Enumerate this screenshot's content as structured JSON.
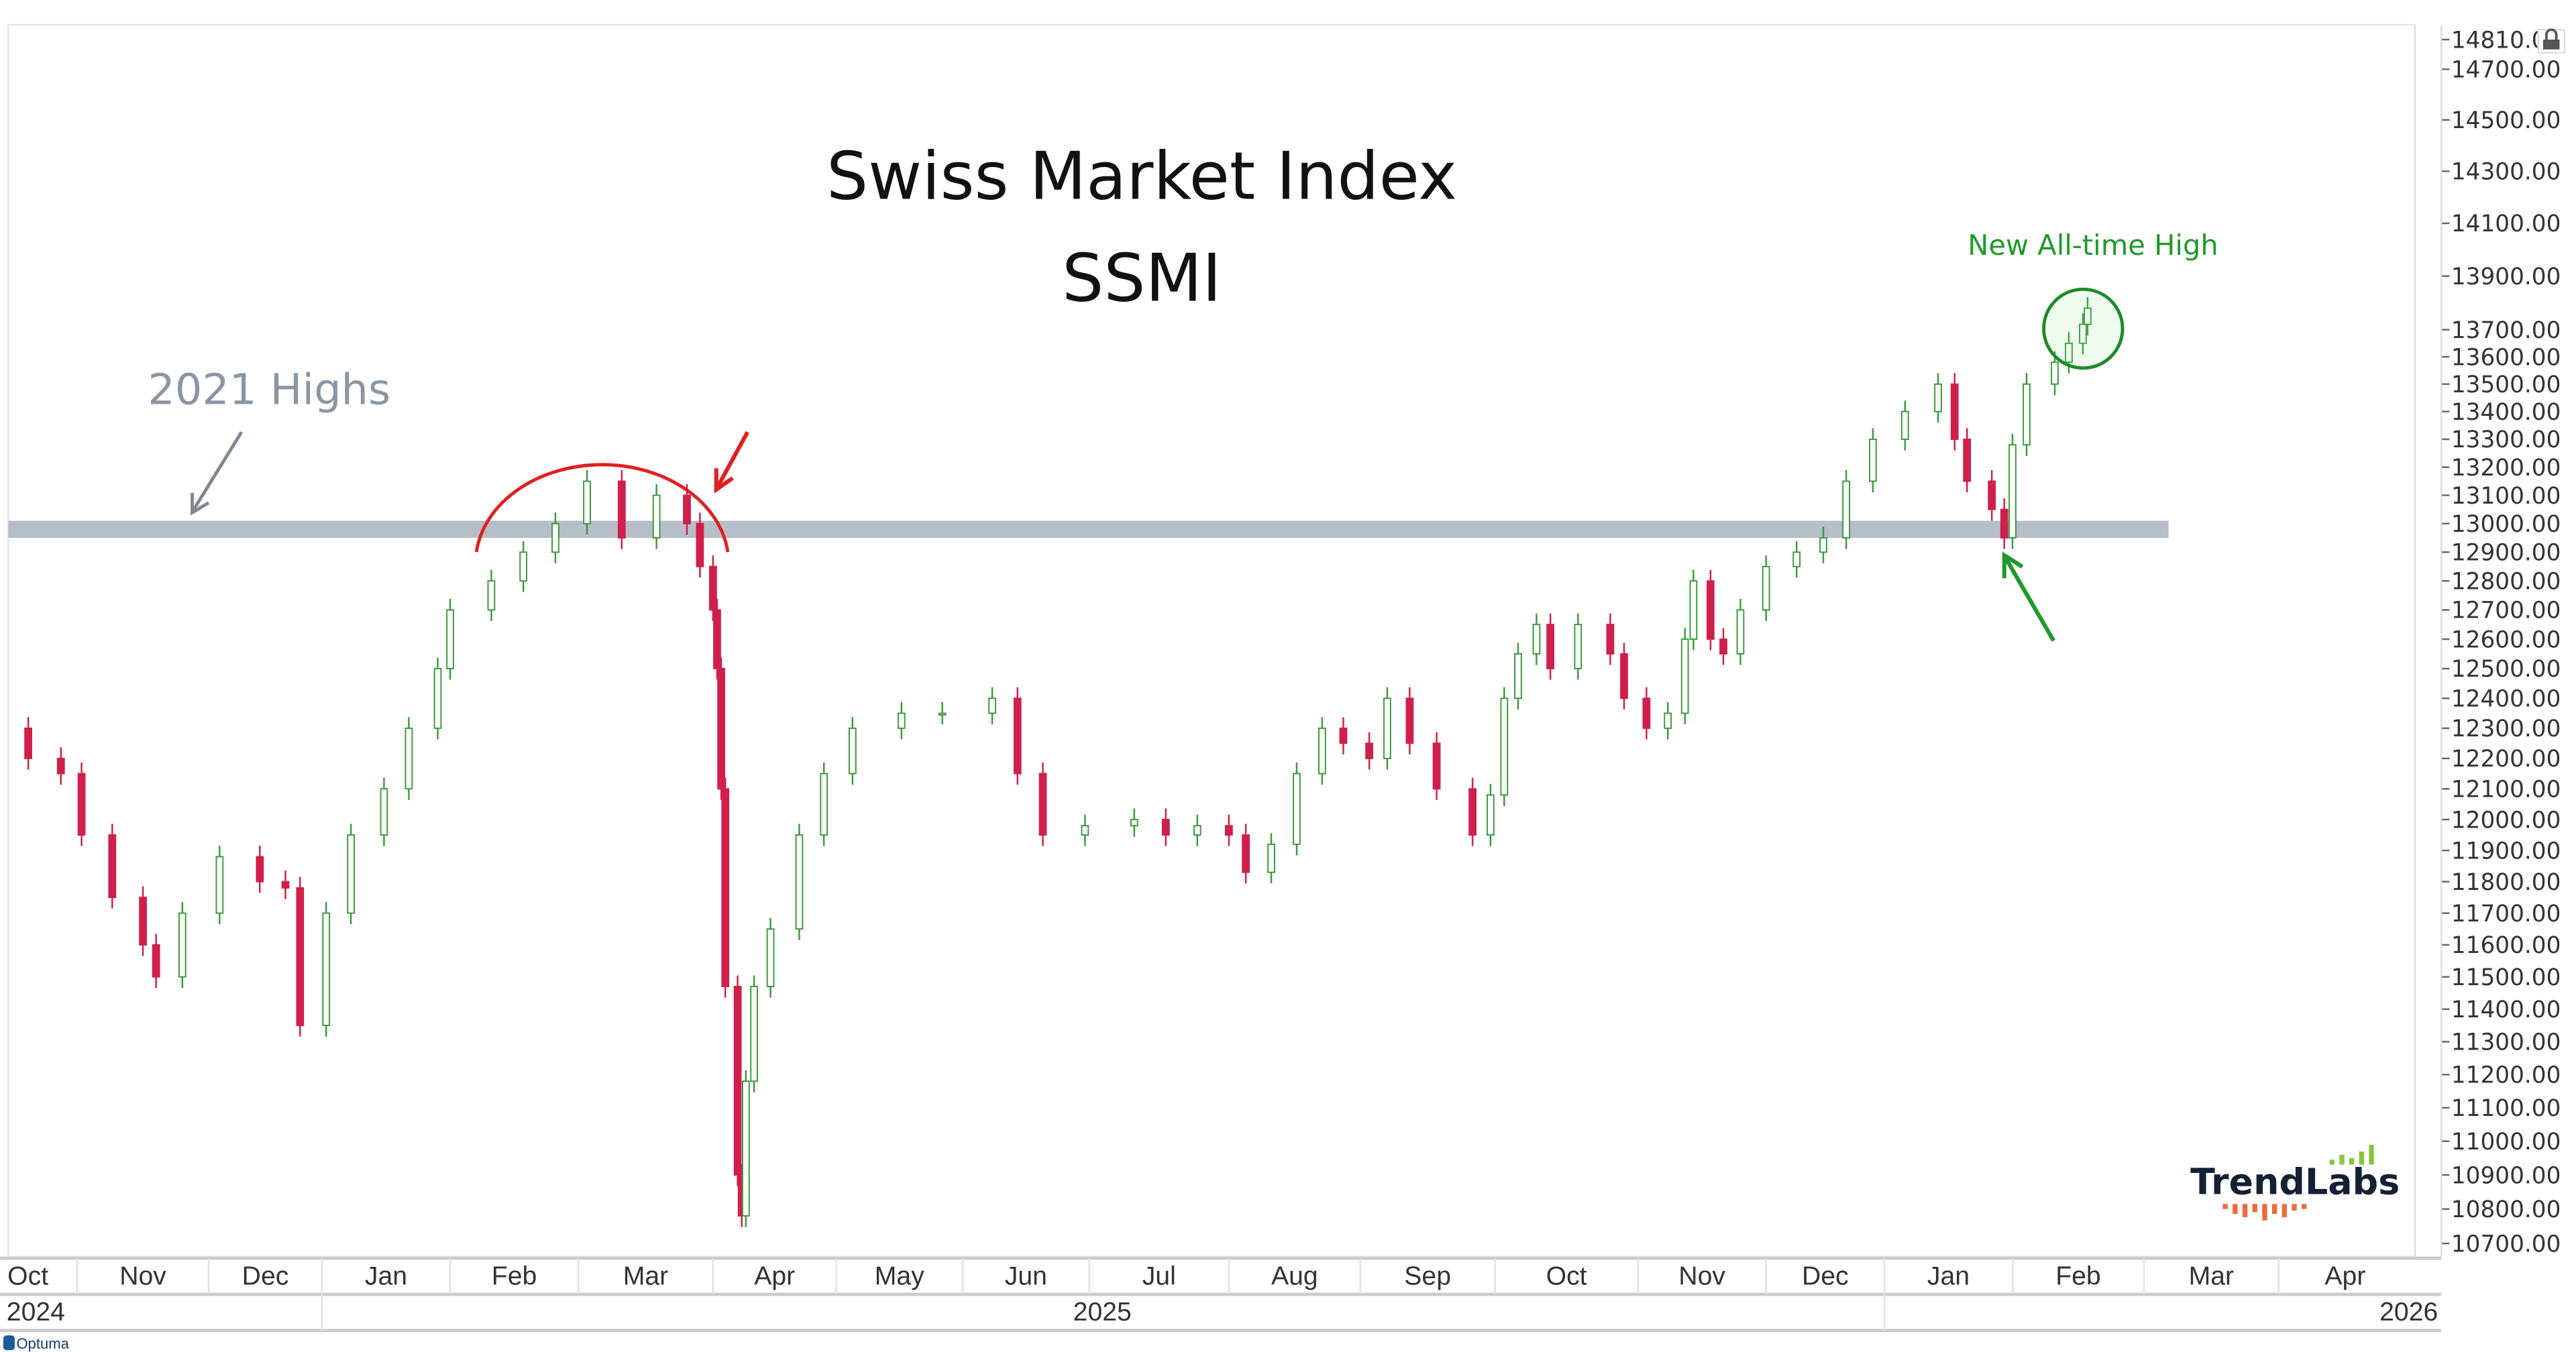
{
  "chart_data": {
    "type": "candlestick",
    "title": "Swiss Market Index",
    "subtitle": "SSMI",
    "y_scale": "log",
    "ylim": [
      10700,
      14810
    ],
    "y_ticks": [
      14810,
      14700,
      14500,
      14300,
      14100,
      13900,
      13700,
      13600,
      13500,
      13400,
      13300,
      13200,
      13100,
      13000,
      12900,
      12800,
      12700,
      12600,
      12500,
      12400,
      12300,
      12200,
      12100,
      12000,
      11900,
      11800,
      11700,
      11600,
      11500,
      11400,
      11300,
      11200,
      11100,
      11000,
      10900,
      10800,
      10700
    ],
    "y_tick_labels": [
      "14810.0",
      "14700.00",
      "14500.00",
      "14300.00",
      "14100.00",
      "13900.00",
      "13700.00",
      "13600.00",
      "13500.00",
      "13400.00",
      "13300.00",
      "13200.00",
      "13100.00",
      "13000.00",
      "12900.00",
      "12800.00",
      "12700.00",
      "12600.00",
      "12500.00",
      "12400.00",
      "12300.00",
      "12200.00",
      "12100.00",
      "12000.00",
      "11900.00",
      "11800.00",
      "11700.00",
      "11600.00",
      "11500.00",
      "11400.00",
      "11300.00",
      "11200.00",
      "11100.00",
      "11000.00",
      "10900.00",
      "10800.00",
      "10700.00"
    ],
    "x_month_labels": [
      "Oct",
      "Nov",
      "Dec",
      "Jan",
      "Feb",
      "Mar",
      "Apr",
      "May",
      "Jun",
      "Jul",
      "Aug",
      "Sep",
      "Oct",
      "Nov",
      "Dec",
      "Jan",
      "Feb",
      "Mar",
      "Apr"
    ],
    "x_year_labels": [
      "2024",
      "2025",
      "2026"
    ],
    "grid": false,
    "colors": {
      "up": "#3a9a3a",
      "down": "#d01f4a",
      "band": "#b6bec8",
      "highs_text": "#8a96a3",
      "red_annotation": "#e02020",
      "green_annotation": "#1f9a2a"
    },
    "series": [
      [
        "2024-10-14",
        12300
      ],
      [
        "2024-10-20",
        12200
      ],
      [
        "2024-10-28",
        12150
      ],
      [
        "2024-11-02",
        11950
      ],
      [
        "2024-11-09",
        11750
      ],
      [
        "2024-11-16",
        11600
      ],
      [
        "2024-11-19",
        11500
      ],
      [
        "2024-11-25",
        11700
      ],
      [
        "2024-12-04",
        11880
      ],
      [
        "2024-12-15",
        11800
      ],
      [
        "2024-12-22",
        11780
      ],
      [
        "2024-12-26",
        11350
      ],
      [
        "2025-01-02",
        11700
      ],
      [
        "2025-01-08",
        11950
      ],
      [
        "2025-01-16",
        12100
      ],
      [
        "2025-01-22",
        12300
      ],
      [
        "2025-01-29",
        12500
      ],
      [
        "2025-02-01",
        12700
      ],
      [
        "2025-02-10",
        12800
      ],
      [
        "2025-02-17",
        12900
      ],
      [
        "2025-02-24",
        13000
      ],
      [
        "2025-03-03",
        13150
      ],
      [
        "2025-03-11",
        12950
      ],
      [
        "2025-03-19",
        13100
      ],
      [
        "2025-03-26",
        13000
      ],
      [
        "2025-03-29",
        12850
      ],
      [
        "2025-04-01",
        12700
      ],
      [
        "2025-04-02",
        12500
      ],
      [
        "2025-04-03",
        12100
      ],
      [
        "2025-04-04",
        11470
      ],
      [
        "2025-04-07",
        10900
      ],
      [
        "2025-04-08",
        10780
      ],
      [
        "2025-04-09",
        11180
      ],
      [
        "2025-04-11",
        11470
      ],
      [
        "2025-04-15",
        11650
      ],
      [
        "2025-04-22",
        11950
      ],
      [
        "2025-04-28",
        12150
      ],
      [
        "2025-05-05",
        12300
      ],
      [
        "2025-05-17",
        12350
      ],
      [
        "2025-05-27",
        12350
      ],
      [
        "2025-06-08",
        12400
      ],
      [
        "2025-06-14",
        12150
      ],
      [
        "2025-06-20",
        11950
      ],
      [
        "2025-06-30",
        11980
      ],
      [
        "2025-07-11",
        12000
      ],
      [
        "2025-07-18",
        11950
      ],
      [
        "2025-07-25",
        11980
      ],
      [
        "2025-08-01",
        11950
      ],
      [
        "2025-08-05",
        11830
      ],
      [
        "2025-08-11",
        11920
      ],
      [
        "2025-08-17",
        12150
      ],
      [
        "2025-08-23",
        12300
      ],
      [
        "2025-08-28",
        12250
      ],
      [
        "2025-09-03",
        12200
      ],
      [
        "2025-09-07",
        12400
      ],
      [
        "2025-09-12",
        12250
      ],
      [
        "2025-09-18",
        12100
      ],
      [
        "2025-09-26",
        11950
      ],
      [
        "2025-09-30",
        12080
      ],
      [
        "2025-10-03",
        12400
      ],
      [
        "2025-10-06",
        12550
      ],
      [
        "2025-10-10",
        12650
      ],
      [
        "2025-10-13",
        12500
      ],
      [
        "2025-10-19",
        12650
      ],
      [
        "2025-10-26",
        12550
      ],
      [
        "2025-10-29",
        12400
      ],
      [
        "2025-11-03",
        12300
      ],
      [
        "2025-11-08",
        12350
      ],
      [
        "2025-11-12",
        12600
      ],
      [
        "2025-11-14",
        12800
      ],
      [
        "2025-11-18",
        12600
      ],
      [
        "2025-11-21",
        12550
      ],
      [
        "2025-11-25",
        12700
      ],
      [
        "2025-12-01",
        12850
      ],
      [
        "2025-12-09",
        12900
      ],
      [
        "2025-12-16",
        12950
      ],
      [
        "2025-12-22",
        13150
      ],
      [
        "2025-12-29",
        13300
      ],
      [
        "2026-01-06",
        13400
      ],
      [
        "2026-01-14",
        13500
      ],
      [
        "2026-01-18",
        13300
      ],
      [
        "2026-01-21",
        13150
      ],
      [
        "2026-01-27",
        13050
      ],
      [
        "2026-01-30",
        12950
      ],
      [
        "2026-02-01",
        13280
      ],
      [
        "2026-02-04",
        13500
      ],
      [
        "2026-02-10",
        13580
      ],
      [
        "2026-02-13",
        13650
      ],
      [
        "2026-02-16",
        13720
      ],
      [
        "2026-02-17",
        13780
      ]
    ],
    "annotations": {
      "highs_label": "2021 Highs",
      "highs_band": [
        12950,
        13010
      ],
      "ath_label": "New All-time High"
    }
  },
  "branding": {
    "logo": "TrendLabs",
    "platform": "Optuma"
  },
  "icons": {
    "axis_lock": "lock-icon"
  }
}
